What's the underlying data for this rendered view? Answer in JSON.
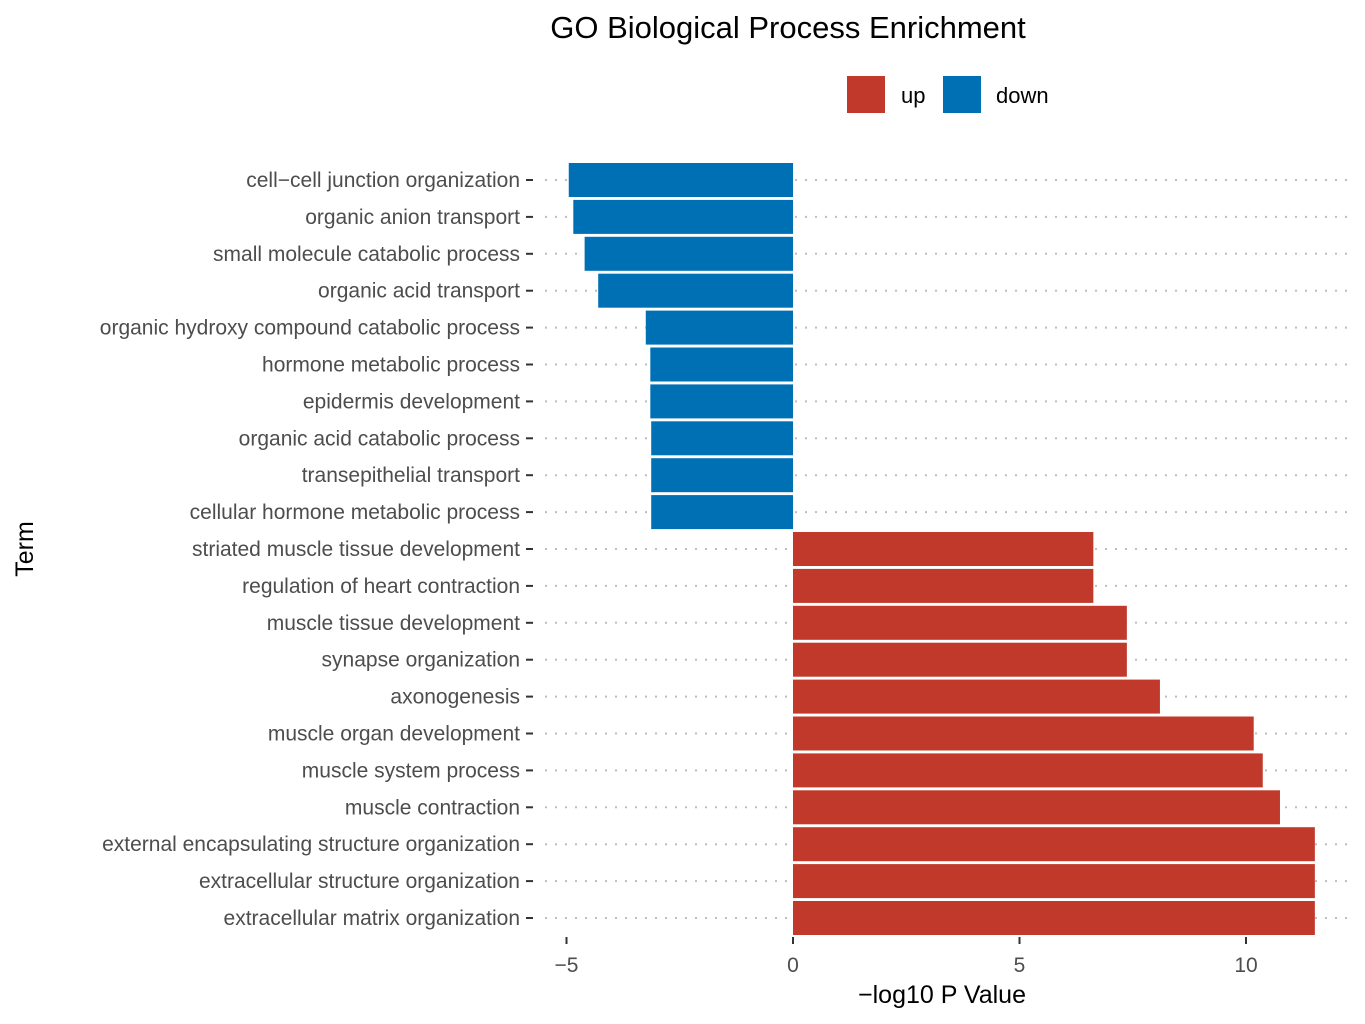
{
  "chart_data": {
    "type": "bar",
    "orientation": "horizontal",
    "title": "GO Biological Process Enrichment",
    "xlabel": "−log10 P Value",
    "ylabel": "Term",
    "xlim": [
      -5.5,
      12.2
    ],
    "x_ticks": [
      -5,
      0,
      5,
      10
    ],
    "x_tick_labels": [
      "−5",
      "0",
      "5",
      "10"
    ],
    "grid": "horizontal dotted",
    "legend": {
      "placement": "top",
      "items": [
        {
          "label": "up",
          "color": "#C0392B"
        },
        {
          "label": "down",
          "color": "#0070B5"
        }
      ]
    },
    "categories": [
      "cell−cell junction organization",
      "organic anion transport",
      "small molecule catabolic process",
      "organic acid transport",
      "organic hydroxy compound catabolic process",
      "hormone metabolic process",
      "epidermis development",
      "organic acid catabolic process",
      "transepithelial transport",
      "cellular hormone metabolic process",
      "striated muscle tissue development",
      "regulation of heart contraction",
      "muscle tissue development",
      "synapse organization",
      "axonogenesis",
      "muscle organ development",
      "muscle system process",
      "muscle contraction",
      "external encapsulating structure organization",
      "extracellular structure organization",
      "extracellular matrix organization"
    ],
    "values": [
      -4.95,
      -4.85,
      -4.6,
      -4.3,
      -3.25,
      -3.15,
      -3.15,
      -3.13,
      -3.13,
      -3.13,
      6.63,
      6.63,
      7.37,
      7.37,
      8.1,
      10.17,
      10.37,
      10.75,
      11.52,
      11.52,
      11.52
    ],
    "groups": [
      "down",
      "down",
      "down",
      "down",
      "down",
      "down",
      "down",
      "down",
      "down",
      "down",
      "up",
      "up",
      "up",
      "up",
      "up",
      "up",
      "up",
      "up",
      "up",
      "up",
      "up"
    ]
  }
}
